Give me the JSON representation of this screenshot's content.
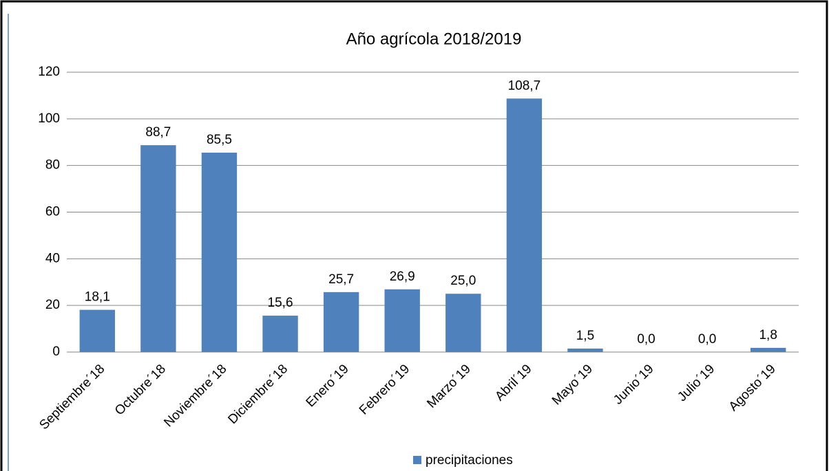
{
  "chart_data": {
    "type": "bar",
    "title": "Año agrícola 2018/2019",
    "categories": [
      "Septiembre´18",
      "Octubre´18",
      "Noviembre´18",
      "Diciembre´18",
      "Enero´19",
      "Febrero´19",
      "Marzo´19",
      "Abril´19",
      "Mayo´19",
      "Junio´19",
      "Julio´19",
      "Agosto´19"
    ],
    "series": [
      {
        "name": "precipitaciones",
        "color": "#4f81bd",
        "values": [
          18.1,
          88.7,
          85.5,
          15.6,
          25.7,
          26.9,
          25.0,
          108.7,
          1.5,
          0.0,
          0.0,
          1.8
        ],
        "value_labels": [
          "18,1",
          "88,7",
          "85,5",
          "15,6",
          "25,7",
          "26,9",
          "25,0",
          "108,7",
          "1,5",
          "0,0",
          "0,0",
          "1,8"
        ]
      }
    ],
    "ylim": [
      0,
      120
    ],
    "yticks": [
      0,
      20,
      40,
      60,
      80,
      100,
      120
    ],
    "grid": true,
    "legend": "bottom"
  }
}
